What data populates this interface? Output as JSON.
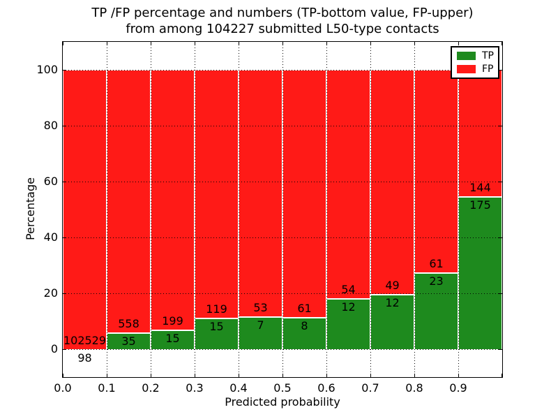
{
  "chart_data": {
    "type": "bar",
    "stacked": true,
    "title": "TP /FP percentage and numbers (TP-bottom value, FP-upper) from among 104227 submitted L50-type contacts",
    "title_lines": [
      "TP /FP percentage and numbers (TP-bottom value, FP-upper)",
      "from among 104227 submitted L50-type contacts"
    ],
    "xlabel": "Predicted probability",
    "ylabel": "Percentage",
    "total_contacts": 104227,
    "x_tick_labels": [
      "0.0",
      "0.1",
      "0.2",
      "0.3",
      "0.4",
      "0.5",
      "0.6",
      "0.7",
      "0.8",
      "0.9"
    ],
    "y_tick_values": [
      0,
      20,
      40,
      60,
      80,
      100
    ],
    "xlim": [
      0.0,
      1.0
    ],
    "ylim": [
      -10,
      110
    ],
    "bin_width": 0.1,
    "grid_style": "dotted",
    "legend": {
      "position": "upper right",
      "entries": [
        {
          "label": "TP",
          "color": "#1e8a1e"
        },
        {
          "label": "FP",
          "color": "#ff1a17"
        }
      ]
    },
    "bins": [
      {
        "x_start": 0.0,
        "tp_count": 98,
        "fp_count": 102529,
        "tp_pct": 0.1
      },
      {
        "x_start": 0.1,
        "tp_count": 35,
        "fp_count": 558,
        "tp_pct": 5.9
      },
      {
        "x_start": 0.2,
        "tp_count": 15,
        "fp_count": 199,
        "tp_pct": 7.0
      },
      {
        "x_start": 0.3,
        "tp_count": 15,
        "fp_count": 119,
        "tp_pct": 11.2
      },
      {
        "x_start": 0.4,
        "tp_count": 7,
        "fp_count": 53,
        "tp_pct": 11.7
      },
      {
        "x_start": 0.5,
        "tp_count": 8,
        "fp_count": 61,
        "tp_pct": 11.6
      },
      {
        "x_start": 0.6,
        "tp_count": 12,
        "fp_count": 54,
        "tp_pct": 18.2
      },
      {
        "x_start": 0.7,
        "tp_count": 12,
        "fp_count": 49,
        "tp_pct": 19.7
      },
      {
        "x_start": 0.8,
        "tp_count": 23,
        "fp_count": 61,
        "tp_pct": 27.4
      },
      {
        "x_start": 0.9,
        "tp_count": 175,
        "fp_count": 144,
        "tp_pct": 54.9
      }
    ],
    "colors": {
      "tp": "#1e8a1e",
      "fp": "#ff1a17",
      "background": "#ffffff",
      "grid": "#000000",
      "bar_edge": "#ffffff"
    }
  }
}
